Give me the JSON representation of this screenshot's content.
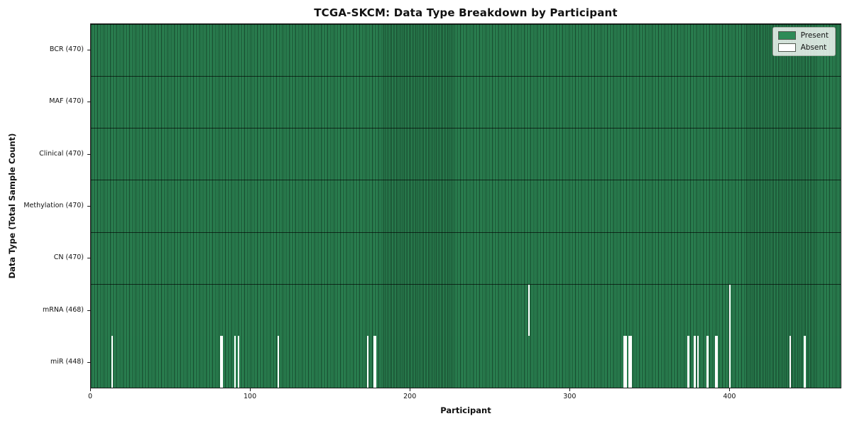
{
  "chart_data": {
    "type": "heatmap",
    "title": "TCGA-SKCM: Data Type Breakdown by Participant",
    "xlabel": "Participant",
    "ylabel": "Data Type (Total Sample Count)",
    "x_range": [
      0,
      470
    ],
    "n_participants": 470,
    "x_ticks": [
      0,
      100,
      200,
      300,
      400
    ],
    "grid": false,
    "legend": {
      "position": "upper right",
      "entries": [
        {
          "label": "Present",
          "color": "#2e8b57"
        },
        {
          "label": "Absent",
          "color": "#ffffff"
        }
      ]
    },
    "colors": {
      "present": "#2e8b57",
      "absent": "#ffffff",
      "bar_edge": "#0a2818",
      "row_divider": "#000000"
    },
    "rows": [
      {
        "label": "BCR",
        "total": 470,
        "display": "BCR (470)",
        "absent_participants": []
      },
      {
        "label": "MAF",
        "total": 470,
        "display": "MAF (470)",
        "absent_participants": []
      },
      {
        "label": "Clinical",
        "total": 470,
        "display": "Clinical (470)",
        "absent_participants": []
      },
      {
        "label": "Methylation",
        "total": 470,
        "display": "Methylation (470)",
        "absent_participants": []
      },
      {
        "label": "CN",
        "total": 470,
        "display": "CN (470)",
        "absent_participants": []
      },
      {
        "label": "mRNA",
        "total": 468,
        "display": "mRNA (468)",
        "absent_participants": [
          274,
          400
        ]
      },
      {
        "label": "miR",
        "total": 448,
        "display": "miR (448)",
        "absent_participants": [
          13,
          81,
          82,
          90,
          92,
          117,
          173,
          177,
          178,
          334,
          335,
          337,
          338,
          374,
          378,
          380,
          386,
          391,
          392,
          400,
          438,
          447
        ]
      }
    ]
  }
}
